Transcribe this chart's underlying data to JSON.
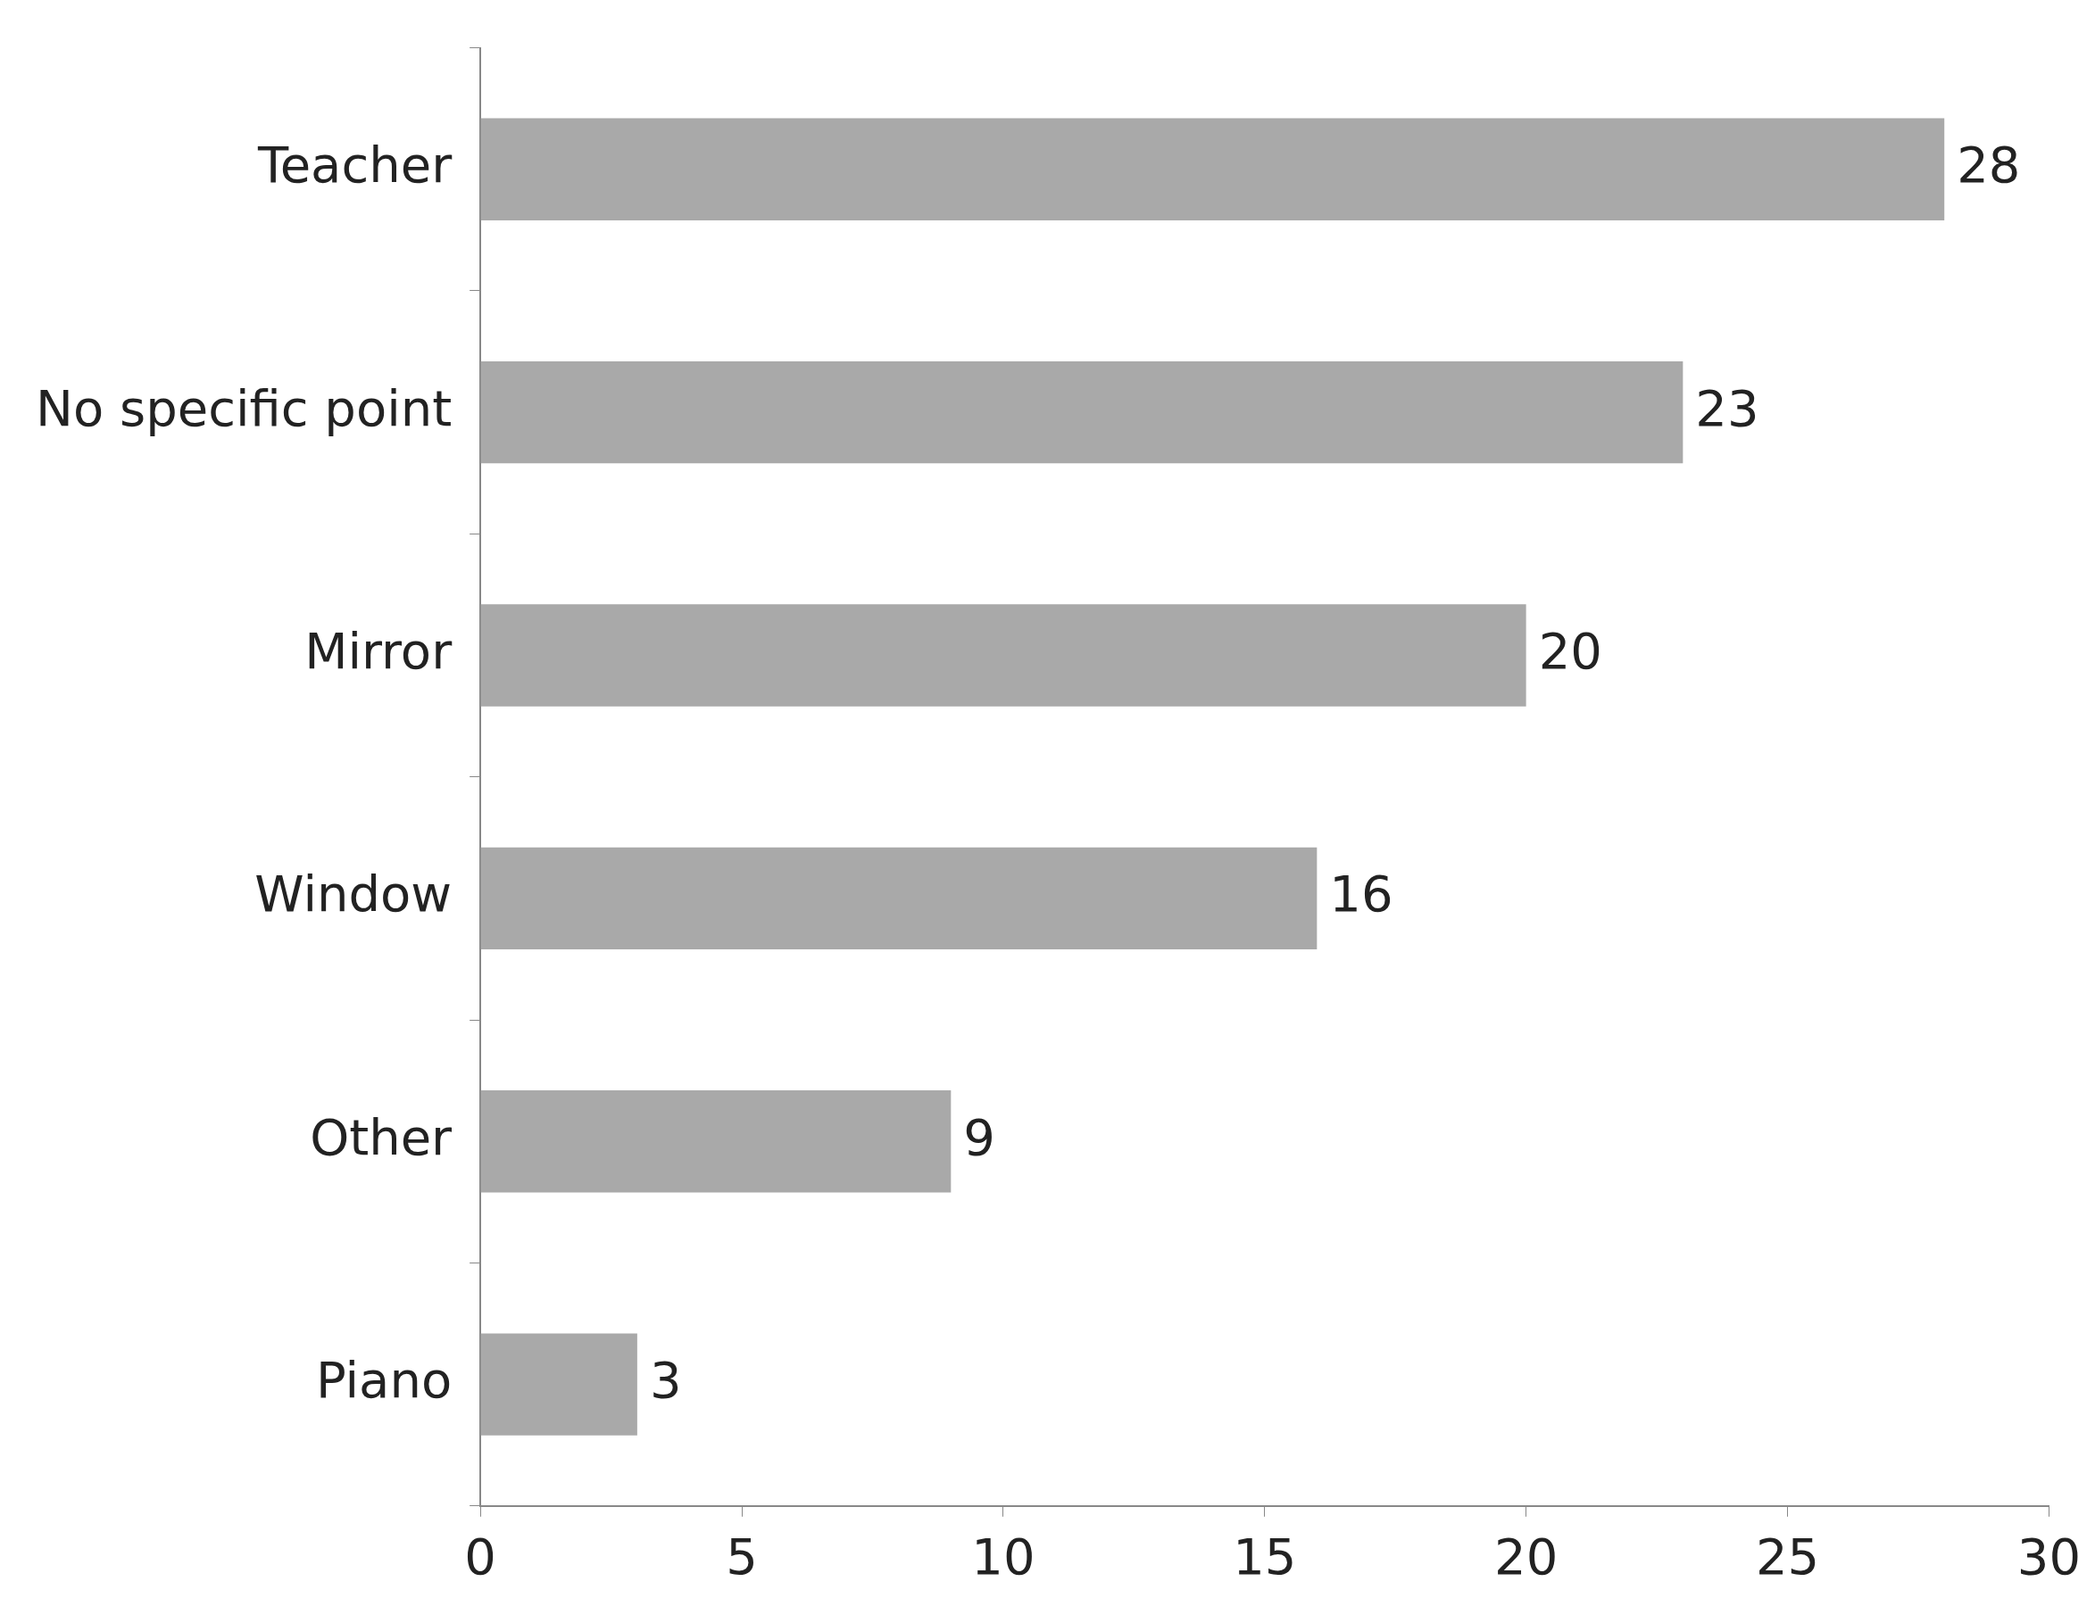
{
  "chart_data": {
    "type": "bar",
    "orientation": "horizontal",
    "categories": [
      "Teacher",
      "No specific point",
      "Mirror",
      "Window",
      "Other",
      "Piano"
    ],
    "values": [
      28,
      23,
      20,
      16,
      9,
      3
    ],
    "color": "#a9a9a9",
    "xlim": [
      0,
      30
    ],
    "xticks": [
      0,
      5,
      10,
      15,
      20,
      25,
      30
    ],
    "data_labels": true
  }
}
